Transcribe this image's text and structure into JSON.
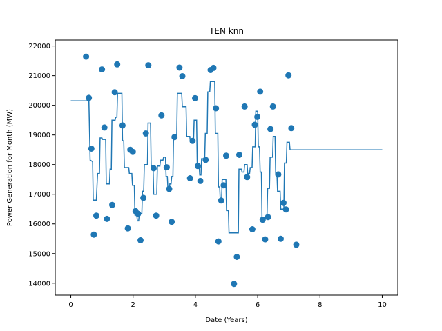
{
  "chart_data": {
    "type": "scatter",
    "title": "TEN knn",
    "xlabel": "Date (Years)",
    "ylabel": "Power Generation for Month (MW)",
    "xlim": [
      -0.5,
      10.5
    ],
    "ylim": [
      13600,
      22200
    ],
    "xticks": [
      0,
      2,
      4,
      6,
      8,
      10
    ],
    "yticks": [
      14000,
      15000,
      16000,
      17000,
      18000,
      19000,
      20000,
      21000,
      22000
    ],
    "grid": false,
    "legend": "none",
    "color": "#1f77b4",
    "series": [
      {
        "kind": "scatter",
        "points": [
          [
            0.49,
            21640
          ],
          [
            0.58,
            20250
          ],
          [
            0.66,
            18540
          ],
          [
            0.74,
            15640
          ],
          [
            0.82,
            16280
          ],
          [
            1.0,
            21210
          ],
          [
            1.08,
            19250
          ],
          [
            1.16,
            16170
          ],
          [
            1.33,
            16640
          ],
          [
            1.41,
            20440
          ],
          [
            1.49,
            21380
          ],
          [
            1.66,
            19320
          ],
          [
            1.83,
            15850
          ],
          [
            1.91,
            18500
          ],
          [
            1.99,
            18430
          ],
          [
            2.08,
            16430
          ],
          [
            2.16,
            16340
          ],
          [
            2.24,
            15450
          ],
          [
            2.33,
            16880
          ],
          [
            2.41,
            19050
          ],
          [
            2.49,
            21350
          ],
          [
            2.66,
            17880
          ],
          [
            2.74,
            16280
          ],
          [
            2.91,
            19660
          ],
          [
            3.08,
            17910
          ],
          [
            3.16,
            17180
          ],
          [
            3.24,
            16070
          ],
          [
            3.33,
            18930
          ],
          [
            3.49,
            21270
          ],
          [
            3.58,
            20980
          ],
          [
            3.83,
            17540
          ],
          [
            3.91,
            18800
          ],
          [
            3.99,
            20240
          ],
          [
            4.08,
            17950
          ],
          [
            4.16,
            17450
          ],
          [
            4.33,
            18160
          ],
          [
            4.49,
            21190
          ],
          [
            4.58,
            21260
          ],
          [
            4.66,
            19900
          ],
          [
            4.74,
            15410
          ],
          [
            4.83,
            16790
          ],
          [
            4.91,
            17300
          ],
          [
            4.99,
            18300
          ],
          [
            5.24,
            13980
          ],
          [
            5.33,
            14890
          ],
          [
            5.41,
            18330
          ],
          [
            5.58,
            19960
          ],
          [
            5.66,
            17580
          ],
          [
            5.83,
            15820
          ],
          [
            5.91,
            19340
          ],
          [
            5.99,
            19610
          ],
          [
            6.08,
            20460
          ],
          [
            6.16,
            16140
          ],
          [
            6.24,
            15480
          ],
          [
            6.33,
            16230
          ],
          [
            6.41,
            19200
          ],
          [
            6.49,
            19960
          ],
          [
            6.66,
            17670
          ],
          [
            6.74,
            15500
          ],
          [
            6.83,
            16710
          ],
          [
            6.91,
            16490
          ],
          [
            6.99,
            21010
          ],
          [
            7.08,
            19230
          ],
          [
            7.24,
            15300
          ]
        ]
      },
      {
        "kind": "step",
        "points": [
          [
            0.0,
            20150
          ],
          [
            0.58,
            20150
          ],
          [
            0.62,
            18150
          ],
          [
            0.7,
            18100
          ],
          [
            0.72,
            16800
          ],
          [
            0.82,
            16800
          ],
          [
            0.86,
            17700
          ],
          [
            0.92,
            17700
          ],
          [
            0.94,
            18900
          ],
          [
            1.0,
            18900
          ],
          [
            1.02,
            18850
          ],
          [
            1.12,
            18850
          ],
          [
            1.14,
            17350
          ],
          [
            1.24,
            17350
          ],
          [
            1.26,
            17850
          ],
          [
            1.3,
            17850
          ],
          [
            1.32,
            19500
          ],
          [
            1.42,
            19500
          ],
          [
            1.44,
            19600
          ],
          [
            1.48,
            19600
          ],
          [
            1.5,
            20400
          ],
          [
            1.64,
            20400
          ],
          [
            1.66,
            18800
          ],
          [
            1.7,
            18800
          ],
          [
            1.72,
            17900
          ],
          [
            1.86,
            17900
          ],
          [
            1.88,
            17700
          ],
          [
            1.96,
            17700
          ],
          [
            1.98,
            17300
          ],
          [
            2.04,
            17300
          ],
          [
            2.06,
            16300
          ],
          [
            2.12,
            16300
          ],
          [
            2.14,
            16100
          ],
          [
            2.18,
            16100
          ],
          [
            2.2,
            16350
          ],
          [
            2.28,
            16350
          ],
          [
            2.3,
            17100
          ],
          [
            2.34,
            17100
          ],
          [
            2.36,
            18000
          ],
          [
            2.46,
            18000
          ],
          [
            2.48,
            19400
          ],
          [
            2.56,
            19400
          ],
          [
            2.58,
            17950
          ],
          [
            2.64,
            17950
          ],
          [
            2.66,
            17000
          ],
          [
            2.76,
            17000
          ],
          [
            2.78,
            17950
          ],
          [
            2.86,
            17950
          ],
          [
            2.88,
            18150
          ],
          [
            2.96,
            18150
          ],
          [
            2.98,
            18250
          ],
          [
            3.04,
            18250
          ],
          [
            3.06,
            17600
          ],
          [
            3.1,
            17600
          ],
          [
            3.12,
            17150
          ],
          [
            3.16,
            17150
          ],
          [
            3.18,
            17350
          ],
          [
            3.22,
            17350
          ],
          [
            3.24,
            17600
          ],
          [
            3.28,
            17600
          ],
          [
            3.3,
            18950
          ],
          [
            3.4,
            18950
          ],
          [
            3.42,
            20400
          ],
          [
            3.56,
            20400
          ],
          [
            3.58,
            19950
          ],
          [
            3.7,
            19950
          ],
          [
            3.72,
            18950
          ],
          [
            3.82,
            18950
          ],
          [
            3.84,
            18750
          ],
          [
            3.94,
            18750
          ],
          [
            3.96,
            19500
          ],
          [
            4.04,
            19500
          ],
          [
            4.06,
            18000
          ],
          [
            4.12,
            18000
          ],
          [
            4.14,
            17650
          ],
          [
            4.18,
            17650
          ],
          [
            4.2,
            18200
          ],
          [
            4.3,
            18200
          ],
          [
            4.32,
            19050
          ],
          [
            4.38,
            19050
          ],
          [
            4.4,
            20450
          ],
          [
            4.46,
            20450
          ],
          [
            4.48,
            20800
          ],
          [
            4.62,
            20800
          ],
          [
            4.64,
            19050
          ],
          [
            4.72,
            19050
          ],
          [
            4.74,
            17250
          ],
          [
            4.78,
            17250
          ],
          [
            4.8,
            16750
          ],
          [
            4.84,
            16750
          ],
          [
            4.86,
            17500
          ],
          [
            4.98,
            17500
          ],
          [
            5.0,
            16450
          ],
          [
            5.06,
            16450
          ],
          [
            5.08,
            15700
          ],
          [
            5.38,
            15700
          ],
          [
            5.4,
            17850
          ],
          [
            5.48,
            17850
          ],
          [
            5.5,
            17750
          ],
          [
            5.56,
            17750
          ],
          [
            5.58,
            18000
          ],
          [
            5.66,
            18000
          ],
          [
            5.68,
            17700
          ],
          [
            5.74,
            17700
          ],
          [
            5.76,
            17900
          ],
          [
            5.82,
            17900
          ],
          [
            5.84,
            18600
          ],
          [
            5.92,
            18600
          ],
          [
            5.94,
            19800
          ],
          [
            6.0,
            19800
          ],
          [
            6.02,
            18600
          ],
          [
            6.06,
            18600
          ],
          [
            6.08,
            17750
          ],
          [
            6.12,
            17750
          ],
          [
            6.14,
            16150
          ],
          [
            6.22,
            16150
          ],
          [
            6.24,
            16250
          ],
          [
            6.3,
            16250
          ],
          [
            6.32,
            17200
          ],
          [
            6.38,
            17200
          ],
          [
            6.4,
            18250
          ],
          [
            6.48,
            18250
          ],
          [
            6.5,
            18950
          ],
          [
            6.56,
            18950
          ],
          [
            6.58,
            17700
          ],
          [
            6.62,
            17700
          ],
          [
            6.64,
            17100
          ],
          [
            6.72,
            17100
          ],
          [
            6.74,
            16500
          ],
          [
            6.84,
            16500
          ],
          [
            6.86,
            18050
          ],
          [
            6.92,
            18050
          ],
          [
            6.94,
            18750
          ],
          [
            7.02,
            18750
          ],
          [
            7.04,
            18500
          ],
          [
            10.0,
            18500
          ]
        ]
      }
    ]
  }
}
